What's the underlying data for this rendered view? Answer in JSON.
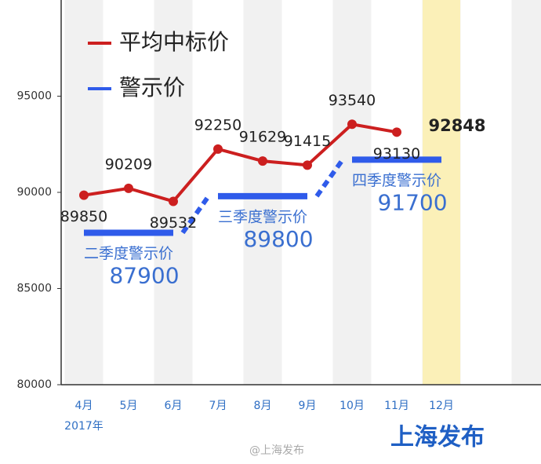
{
  "chart_data": {
    "type": "line",
    "categories": [
      "4月",
      "5月",
      "6月",
      "7月",
      "8月",
      "9月",
      "10月",
      "11月",
      "12月"
    ],
    "x_note": "2017年",
    "series": [
      {
        "name": "平均中标价",
        "color": "#cc1f1f",
        "values": [
          89850,
          90209,
          89532,
          92250,
          91629,
          91415,
          93540,
          93130,
          null
        ]
      },
      {
        "name": "警示价",
        "color": "#2f5bea",
        "values": [
          87900,
          87900,
          87900,
          89800,
          89800,
          89800,
          91700,
          91700,
          91700
        ]
      }
    ],
    "quarter_labels": [
      "二季度警示价",
      "三季度警示价",
      "四季度警示价"
    ],
    "current": {
      "category": "12月",
      "value": 92848
    },
    "ylim": [
      80000,
      100000
    ],
    "yticks": [
      80000,
      85000,
      90000,
      95000
    ],
    "watermark": "上海发布",
    "source": "@上海发布"
  }
}
